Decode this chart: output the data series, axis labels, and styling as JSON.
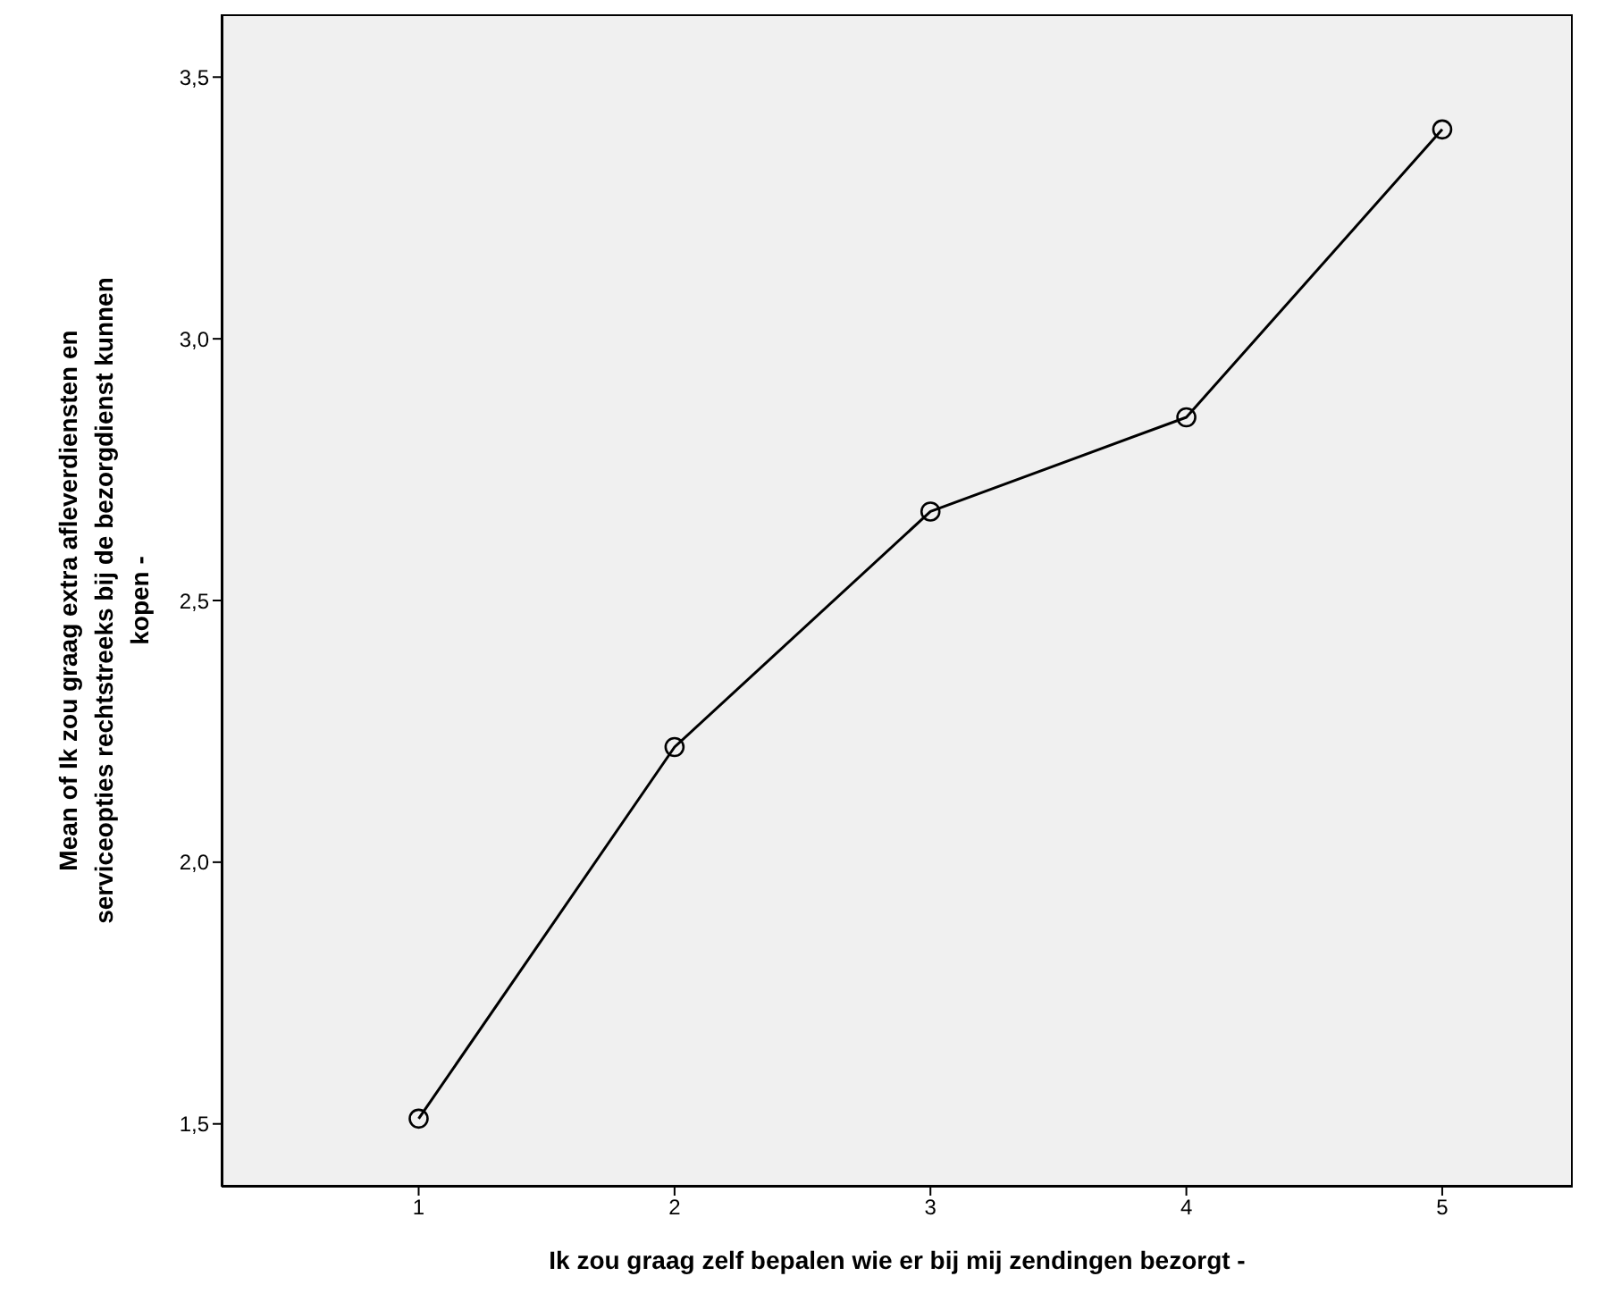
{
  "chart_data": {
    "type": "line",
    "xlabel": "Ik zou graag zelf bepalen wie er bij mij zendingen bezorgt -",
    "ylabel": "Mean of Ik zou graag extra afleverdiensten en\nserviceopties rechtstreeks  bij de bezorgdienst kunnen\nkopen -",
    "x": [
      1,
      2,
      3,
      4,
      5
    ],
    "series": [
      {
        "color": "#000000",
        "values": [
          1.51,
          2.22,
          2.67,
          2.85,
          3.4
        ]
      }
    ],
    "xlim": [
      0.23,
      5.51
    ],
    "xticks": [
      1,
      2,
      3,
      4,
      5
    ],
    "ylim": [
      1.38,
      3.62
    ],
    "yticks": [
      {
        "value": 1.5,
        "label": "1,5"
      },
      {
        "value": 2,
        "label": "2,0"
      },
      {
        "value": 2.5,
        "label": "2,5"
      },
      {
        "value": 3,
        "label": "3,0"
      },
      {
        "value": 3.5,
        "label": "3,5"
      }
    ],
    "marker": "circle",
    "line_style": "solid",
    "legend": false
  }
}
